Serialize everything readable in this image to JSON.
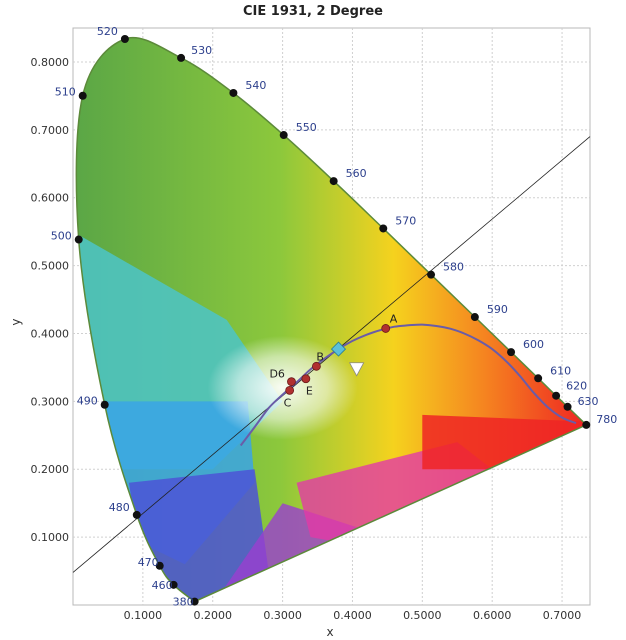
{
  "chart_data": {
    "type": "scatter",
    "title": "CIE 1931, 2 Degree",
    "xlabel": "x",
    "ylabel": "y",
    "xlim": [
      0.0,
      0.74
    ],
    "ylim": [
      0.0,
      0.85
    ],
    "x_ticks": [
      "0.1000",
      "0.2000",
      "0.3000",
      "0.4000",
      "0.5000",
      "0.6000",
      "0.7000"
    ],
    "y_ticks": [
      "0.1000",
      "0.2000",
      "0.3000",
      "0.4000",
      "0.5000",
      "0.6000",
      "0.7000",
      "0.8000"
    ],
    "grid": true,
    "colors": {
      "boundary_point": "#111111",
      "planckian_locus": "#6a5ca8",
      "illuminant_point": "#b03030",
      "diamond_marker": "#5bc0d8",
      "triangle_marker": "#ffffff",
      "wavelength_label": "#2c3f8c"
    },
    "spectral_locus": [
      {
        "label": "380",
        "x": 0.1741,
        "y": 0.005
      },
      {
        "label": "460",
        "x": 0.144,
        "y": 0.0297
      },
      {
        "label": "470",
        "x": 0.1241,
        "y": 0.0578
      },
      {
        "label": "480",
        "x": 0.0913,
        "y": 0.1327
      },
      {
        "label": "490",
        "x": 0.0454,
        "y": 0.295
      },
      {
        "label": "500",
        "x": 0.0082,
        "y": 0.5384
      },
      {
        "label": "510",
        "x": 0.0139,
        "y": 0.7502
      },
      {
        "label": "520",
        "x": 0.0743,
        "y": 0.8338
      },
      {
        "label": "530",
        "x": 0.1547,
        "y": 0.8059
      },
      {
        "label": "540",
        "x": 0.2296,
        "y": 0.7543
      },
      {
        "label": "550",
        "x": 0.3016,
        "y": 0.6923
      },
      {
        "label": "560",
        "x": 0.3731,
        "y": 0.6245
      },
      {
        "label": "570",
        "x": 0.4441,
        "y": 0.5547
      },
      {
        "label": "580",
        "x": 0.5125,
        "y": 0.4866
      },
      {
        "label": "590",
        "x": 0.5752,
        "y": 0.4242
      },
      {
        "label": "600",
        "x": 0.627,
        "y": 0.3725
      },
      {
        "label": "610",
        "x": 0.6658,
        "y": 0.334
      },
      {
        "label": "620",
        "x": 0.6915,
        "y": 0.3083
      },
      {
        "label": "630",
        "x": 0.7079,
        "y": 0.292
      },
      {
        "label": "780",
        "x": 0.7347,
        "y": 0.2653
      }
    ],
    "white_points": [
      {
        "label": "A",
        "x": 0.4476,
        "y": 0.4074
      },
      {
        "label": "B",
        "x": 0.3484,
        "y": 0.3516
      },
      {
        "label": "C",
        "x": 0.3101,
        "y": 0.3162
      },
      {
        "label": "D6",
        "x": 0.3127,
        "y": 0.329
      },
      {
        "label": "E",
        "x": 0.3333,
        "y": 0.3333
      }
    ],
    "planckian_locus": [
      {
        "x": 0.24,
        "y": 0.235
      },
      {
        "x": 0.26,
        "y": 0.262
      },
      {
        "x": 0.28,
        "y": 0.29
      },
      {
        "x": 0.3,
        "y": 0.31
      },
      {
        "x": 0.32,
        "y": 0.328
      },
      {
        "x": 0.34,
        "y": 0.347
      },
      {
        "x": 0.36,
        "y": 0.363
      },
      {
        "x": 0.38,
        "y": 0.377
      },
      {
        "x": 0.4,
        "y": 0.389
      },
      {
        "x": 0.42,
        "y": 0.398
      },
      {
        "x": 0.44,
        "y": 0.405
      },
      {
        "x": 0.46,
        "y": 0.41
      },
      {
        "x": 0.48,
        "y": 0.412
      },
      {
        "x": 0.5,
        "y": 0.413
      },
      {
        "x": 0.52,
        "y": 0.411
      },
      {
        "x": 0.54,
        "y": 0.407
      },
      {
        "x": 0.56,
        "y": 0.4
      },
      {
        "x": 0.58,
        "y": 0.39
      },
      {
        "x": 0.6,
        "y": 0.377
      },
      {
        "x": 0.62,
        "y": 0.359
      },
      {
        "x": 0.64,
        "y": 0.337
      },
      {
        "x": 0.66,
        "y": 0.312
      },
      {
        "x": 0.68,
        "y": 0.291
      },
      {
        "x": 0.7,
        "y": 0.276
      },
      {
        "x": 0.72,
        "y": 0.268
      }
    ],
    "reference_line": {
      "x1": 0.0,
      "y1": 0.048,
      "x2": 0.74,
      "y2": 0.69
    },
    "diamond_marker": {
      "x": 0.38,
      "y": 0.377
    },
    "triangle_marker": {
      "x": 0.406,
      "y": 0.348
    }
  }
}
